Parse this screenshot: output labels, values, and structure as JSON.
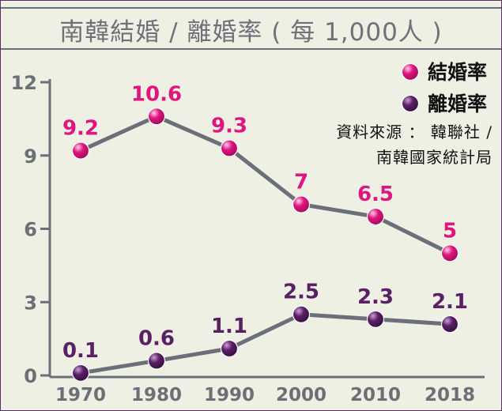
{
  "title": "南韓結婚 / 離婚率 ( 每 1,000人 )",
  "source": {
    "line1": "資料來源 ： 韓聯社 /",
    "line2": "南韓國家統計局"
  },
  "colors": {
    "marriage": "#e0157f",
    "divorce": "#5b1f66",
    "line": "#6b6f78",
    "background": "#eef0e4"
  },
  "chart_data": {
    "type": "line",
    "title": "南韓結婚 / 離婚率 ( 每 1,000人 )",
    "categories": [
      "1970",
      "1980",
      "1990",
      "2000",
      "2010",
      "2018"
    ],
    "y_ticks": [
      "0",
      "3",
      "6",
      "9",
      "12"
    ],
    "ylim": [
      0,
      12
    ],
    "legend_position": "top-right",
    "series": [
      {
        "name": "結婚率",
        "values": [
          9.2,
          10.6,
          9.3,
          7,
          6.5,
          5
        ],
        "labels": [
          "9.2",
          "10.6",
          "9.3",
          "7",
          "6.5",
          "5"
        ]
      },
      {
        "name": "離婚率",
        "values": [
          0.1,
          0.6,
          1.1,
          2.5,
          2.3,
          2.1
        ],
        "labels": [
          "0.1",
          "0.6",
          "1.1",
          "2.5",
          "2.3",
          "2.1"
        ]
      }
    ]
  }
}
